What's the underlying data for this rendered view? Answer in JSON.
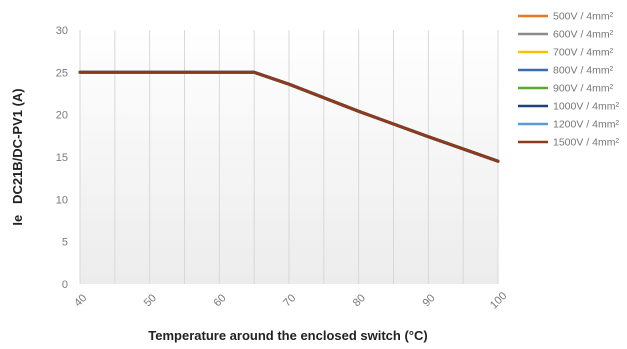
{
  "chart_data": {
    "type": "line",
    "title": "",
    "xlabel": "Temperature around the enclosed switch (°C)",
    "ylabel": "Ie   DC21B/DC-PV1 (A)",
    "xlim": [
      40,
      100
    ],
    "ylim": [
      0,
      30
    ],
    "x_ticks": [
      "40",
      "50",
      "60",
      "70",
      "80",
      "90",
      "100"
    ],
    "y_ticks": [
      "0",
      "5",
      "10",
      "15",
      "20",
      "25",
      "30"
    ],
    "grid": "vertical",
    "legend_position": "top-right",
    "series": [
      {
        "name": "500V / 4mm²",
        "color": "#e87722",
        "x": [
          40,
          65,
          70,
          80,
          90,
          100
        ],
        "y": [
          25,
          25,
          23.6,
          20.4,
          17.4,
          14.5
        ]
      },
      {
        "name": "600V / 4mm²",
        "color": "#8c8c8c",
        "x": [
          40,
          65,
          70,
          80,
          90,
          100
        ],
        "y": [
          25,
          25,
          23.6,
          20.4,
          17.4,
          14.5
        ]
      },
      {
        "name": "700V / 4mm²",
        "color": "#f5c400",
        "x": [
          40,
          65,
          70,
          80,
          90,
          100
        ],
        "y": [
          25,
          25,
          23.6,
          20.4,
          17.4,
          14.5
        ]
      },
      {
        "name": "800V / 4mm²",
        "color": "#3d6bb3",
        "x": [
          40,
          65,
          70,
          80,
          90,
          100
        ],
        "y": [
          25,
          25,
          23.6,
          20.4,
          17.4,
          14.5
        ]
      },
      {
        "name": "900V / 4mm²",
        "color": "#5aa832",
        "x": [
          40,
          65,
          70,
          80,
          90,
          100
        ],
        "y": [
          25,
          25,
          23.6,
          20.4,
          17.4,
          14.5
        ]
      },
      {
        "name": "1000V / 4mm²",
        "color": "#1f3f7a",
        "x": [
          40,
          65,
          70,
          80,
          90,
          100
        ],
        "y": [
          25,
          25,
          23.6,
          20.4,
          17.4,
          14.5
        ]
      },
      {
        "name": "1200V / 4mm²",
        "color": "#5b9bd5",
        "x": [
          40,
          65,
          70,
          80,
          90,
          100
        ],
        "y": [
          25,
          25,
          23.6,
          20.4,
          17.4,
          14.5
        ]
      },
      {
        "name": "1500V / 4mm²",
        "color": "#8b3a1e",
        "x": [
          40,
          65,
          70,
          80,
          90,
          100
        ],
        "y": [
          25,
          25,
          23.6,
          20.4,
          17.4,
          14.5
        ]
      }
    ]
  }
}
